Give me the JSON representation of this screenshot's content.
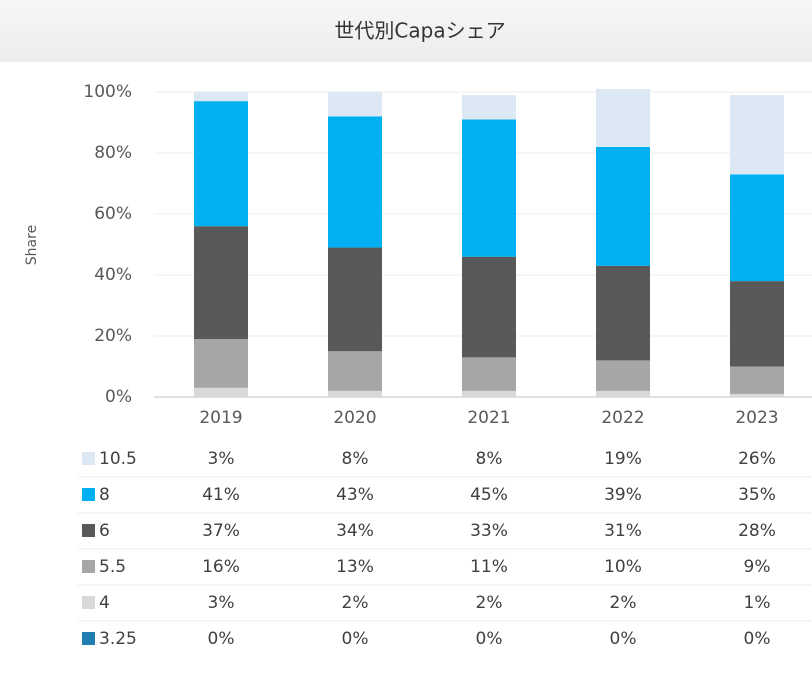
{
  "chart_data": {
    "type": "stacked_bar",
    "title": "世代別Capaシェア",
    "y_label": "Share",
    "categories": [
      "2019",
      "2020",
      "2021",
      "2022",
      "2023"
    ],
    "series": [
      {
        "name": "10.5",
        "color": "#dce9f5",
        "values": [
          3,
          8,
          8,
          19,
          26
        ],
        "value_labels": [
          "3%",
          "8%",
          "8%",
          "19%",
          "26%"
        ]
      },
      {
        "name": "8",
        "color": "#00b0f0",
        "values": [
          41,
          43,
          45,
          39,
          35
        ],
        "value_labels": [
          "41%",
          "43%",
          "45%",
          "39%",
          "35%"
        ]
      },
      {
        "name": "6",
        "color": "#595959",
        "values": [
          37,
          34,
          33,
          31,
          28
        ],
        "value_labels": [
          "37%",
          "34%",
          "33%",
          "31%",
          "28%"
        ]
      },
      {
        "name": "5.5",
        "color": "#a6a6a6",
        "values": [
          16,
          13,
          11,
          10,
          9
        ],
        "value_labels": [
          "16%",
          "13%",
          "11%",
          "10%",
          "9%"
        ]
      },
      {
        "name": "4",
        "color": "#d9d9d9",
        "values": [
          3,
          2,
          2,
          2,
          1
        ],
        "value_labels": [
          "3%",
          "2%",
          "2%",
          "2%",
          "1%"
        ]
      },
      {
        "name": "3.25",
        "color": "#1f7fb3",
        "values": [
          0,
          0,
          0,
          0,
          0
        ],
        "value_labels": [
          "0%",
          "0%",
          "0%",
          "0%",
          "0%"
        ]
      }
    ],
    "ylim": [
      0,
      100
    ],
    "yticks": [
      {
        "value": 0,
        "label": "0%"
      },
      {
        "value": 20,
        "label": "20%"
      },
      {
        "value": 40,
        "label": "40%"
      },
      {
        "value": 60,
        "label": "60%"
      },
      {
        "value": 80,
        "label": "80%"
      },
      {
        "value": 100,
        "label": "100%"
      }
    ],
    "grid": true
  }
}
